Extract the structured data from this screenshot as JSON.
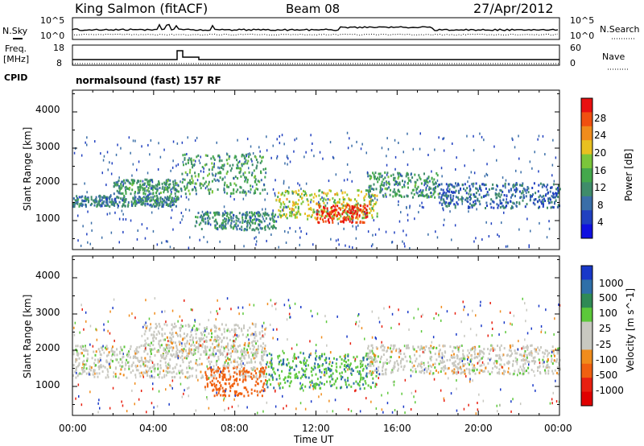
{
  "header": {
    "station": "King Salmon (fitACF)",
    "beam": "Beam 08",
    "date": "27/Apr/2012"
  },
  "top_panel": {
    "left_label": "N.Sky",
    "right_label": "N.Search",
    "left_ticks": [
      "10^5",
      "10^0"
    ],
    "right_ticks": [
      "10^5",
      "10^0"
    ]
  },
  "freq_panel": {
    "left_label_line1": "Freq.",
    "left_label_line2": "[MHz]",
    "right_label": "Nave",
    "left_ticks": [
      "18",
      "8"
    ],
    "right_ticks": [
      "60",
      "0"
    ],
    "cpid_label": "CPID",
    "program_name": "normalsound (fast) 157 RF"
  },
  "colors": {
    "power_scale": [
      "#1010e0",
      "#2040c0",
      "#3a6ea8",
      "#3f8c6a",
      "#44a84c",
      "#7bc63a",
      "#e8c020",
      "#f08c1c",
      "#f05010",
      "#e81010"
    ],
    "velocity_scale": [
      "#1838c8",
      "#2f6fa8",
      "#2f8a55",
      "#5cc83a",
      "#c8c8c0",
      "#c8c8c0",
      "#f08c1c",
      "#f06010",
      "#e82010",
      "#e00000"
    ]
  },
  "chart_data": [
    {
      "type": "heatmap",
      "title": "Power",
      "ylabel": "Slant Range [km]",
      "ylim": [
        200,
        4600
      ],
      "yticks": [
        "1000",
        "2000",
        "3000",
        "4000"
      ],
      "colorbar_label": "Power [dB]",
      "colorbar_ticks": [
        "4",
        "8",
        "12",
        "16",
        "20",
        "24",
        "28"
      ],
      "regions": [
        {
          "t0": 0.0,
          "t1": 5.2,
          "r0": 1350,
          "r1": 1650,
          "db": 8
        },
        {
          "t0": 2.0,
          "t1": 5.2,
          "r0": 1700,
          "r1": 2100,
          "db": 10
        },
        {
          "t0": 5.3,
          "t1": 9.5,
          "r0": 1700,
          "r1": 2800,
          "db": 11
        },
        {
          "t0": 6.0,
          "t1": 10.0,
          "r0": 700,
          "r1": 1200,
          "db": 9
        },
        {
          "t0": 10.0,
          "t1": 15.0,
          "r0": 1000,
          "r1": 1800,
          "db": 16
        },
        {
          "t0": 12.0,
          "t1": 14.5,
          "r0": 900,
          "r1": 1400,
          "db": 26
        },
        {
          "t0": 14.5,
          "t1": 18.0,
          "r0": 1600,
          "r1": 2300,
          "db": 10
        },
        {
          "t0": 18.0,
          "t1": 24.0,
          "r0": 1300,
          "r1": 2000,
          "db": 6
        }
      ]
    },
    {
      "type": "heatmap",
      "title": "Velocity",
      "ylabel": "Slant Range [km]",
      "xlabel": "Time UT",
      "ylim": [
        200,
        4600
      ],
      "yticks": [
        "1000",
        "2000",
        "3000",
        "4000"
      ],
      "xticks": [
        "00:00",
        "04:00",
        "08:00",
        "12:00",
        "16:00",
        "20:00",
        "00:00"
      ],
      "colorbar_label": "Velocity [m s^-1]",
      "colorbar_ticks": [
        "1000",
        "500",
        "100",
        "25",
        "-25",
        "-100",
        "-500",
        "-1000"
      ],
      "regions": [
        {
          "t0": 0.0,
          "t1": 9.5,
          "r0": 1200,
          "r1": 2100,
          "v": 0
        },
        {
          "t0": 3.5,
          "t1": 9.5,
          "r0": 1800,
          "r1": 2700,
          "v": 0
        },
        {
          "t0": 6.5,
          "t1": 9.5,
          "r0": 700,
          "r1": 1500,
          "v": -150
        },
        {
          "t0": 9.5,
          "t1": 15.0,
          "r0": 900,
          "r1": 1900,
          "v": 90
        },
        {
          "t0": 14.5,
          "t1": 24.0,
          "r0": 1300,
          "r1": 2100,
          "v": 0
        }
      ]
    }
  ]
}
